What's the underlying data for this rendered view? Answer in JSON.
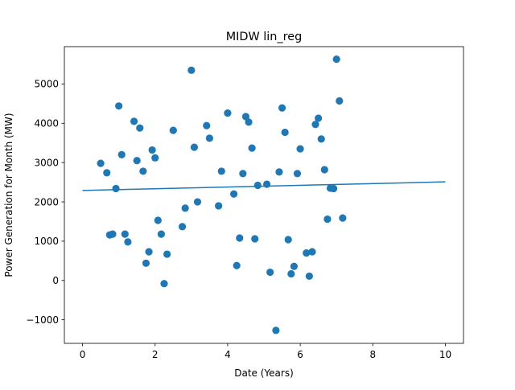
{
  "chart_data": {
    "type": "scatter",
    "title": "MIDW lin_reg",
    "xlabel": "Date (Years)",
    "ylabel": "Power Generation for Month (MW)",
    "xlim": [
      -0.5,
      10.5
    ],
    "ylim": [
      -1600,
      5950
    ],
    "xticks": [
      0,
      2,
      4,
      6,
      8,
      10
    ],
    "yticks": [
      -1000,
      0,
      1000,
      2000,
      3000,
      4000,
      5000
    ],
    "grid": false,
    "colors": {
      "points": "#1f77b4",
      "line": "#1f77b4"
    },
    "series": [
      {
        "kind": "scatter",
        "points": [
          [
            0.5,
            2980
          ],
          [
            0.67,
            2740
          ],
          [
            0.75,
            1160
          ],
          [
            0.83,
            1180
          ],
          [
            0.92,
            2340
          ],
          [
            1.0,
            4440
          ],
          [
            1.08,
            3200
          ],
          [
            1.17,
            1180
          ],
          [
            1.25,
            980
          ],
          [
            1.42,
            4050
          ],
          [
            1.5,
            3050
          ],
          [
            1.58,
            3880
          ],
          [
            1.67,
            2780
          ],
          [
            1.75,
            440
          ],
          [
            1.83,
            730
          ],
          [
            1.92,
            3320
          ],
          [
            2.0,
            3120
          ],
          [
            2.08,
            1530
          ],
          [
            2.17,
            1180
          ],
          [
            2.25,
            -80
          ],
          [
            2.33,
            670
          ],
          [
            2.5,
            3820
          ],
          [
            2.75,
            1370
          ],
          [
            2.83,
            1840
          ],
          [
            3.0,
            5350
          ],
          [
            3.08,
            3390
          ],
          [
            3.17,
            2000
          ],
          [
            3.42,
            3940
          ],
          [
            3.5,
            3620
          ],
          [
            3.75,
            1900
          ],
          [
            3.83,
            2780
          ],
          [
            4.0,
            4260
          ],
          [
            4.17,
            2200
          ],
          [
            4.25,
            380
          ],
          [
            4.33,
            1080
          ],
          [
            4.42,
            2720
          ],
          [
            4.5,
            4170
          ],
          [
            4.58,
            4030
          ],
          [
            4.67,
            3370
          ],
          [
            4.75,
            1060
          ],
          [
            4.83,
            2420
          ],
          [
            5.08,
            2450
          ],
          [
            5.17,
            210
          ],
          [
            5.33,
            -1270
          ],
          [
            5.42,
            2760
          ],
          [
            5.5,
            4390
          ],
          [
            5.58,
            3770
          ],
          [
            5.67,
            1040
          ],
          [
            5.75,
            170
          ],
          [
            5.83,
            360
          ],
          [
            5.92,
            2720
          ],
          [
            6.0,
            3350
          ],
          [
            6.17,
            700
          ],
          [
            6.25,
            110
          ],
          [
            6.33,
            730
          ],
          [
            6.42,
            3970
          ],
          [
            6.5,
            4130
          ],
          [
            6.58,
            3600
          ],
          [
            6.67,
            2820
          ],
          [
            6.75,
            1560
          ],
          [
            6.83,
            2350
          ],
          [
            6.92,
            2340
          ],
          [
            7.0,
            5630
          ],
          [
            7.08,
            4570
          ],
          [
            7.17,
            1590
          ]
        ]
      },
      {
        "kind": "line",
        "points": [
          [
            0,
            2290
          ],
          [
            10,
            2510
          ]
        ]
      }
    ]
  }
}
